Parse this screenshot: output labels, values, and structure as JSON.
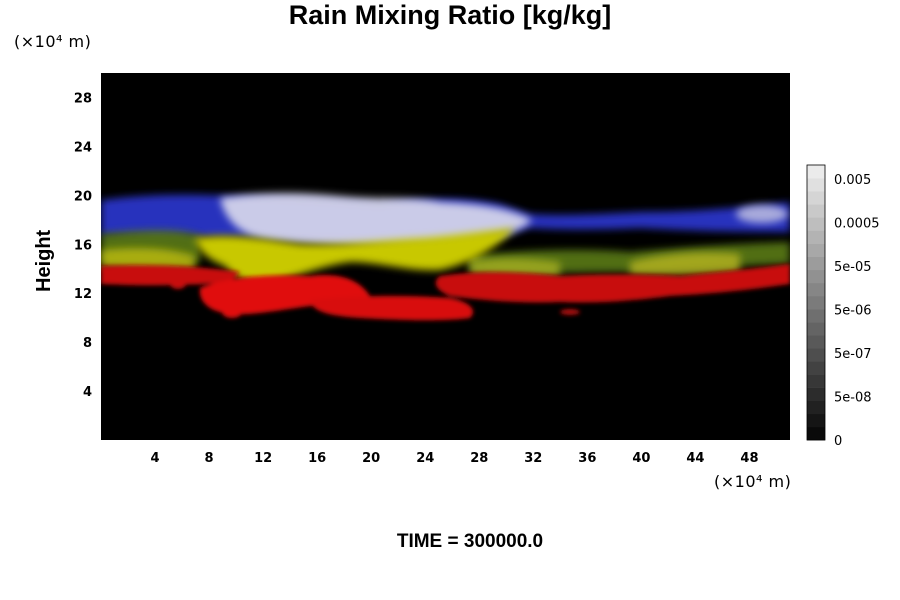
{
  "chart_data": {
    "type": "heatmap",
    "title": "Rain Mixing Ratio [kg/kg]",
    "ylabel": "Height",
    "xlabel": "",
    "x_unit": "(×10⁴ m)",
    "y_unit": "(×10⁴ m)",
    "x_ticks": [
      4,
      8,
      12,
      16,
      20,
      24,
      28,
      32,
      36,
      40,
      44,
      48
    ],
    "y_ticks": [
      4,
      8,
      12,
      16,
      20,
      24,
      28
    ],
    "xlim": [
      0,
      51
    ],
    "ylim": [
      0,
      30
    ],
    "colorbar": {
      "labels": [
        "0.005",
        "0.0005",
        "5e-05",
        "5e-06",
        "5e-07",
        "5e-08",
        "0"
      ],
      "levels": 21,
      "range": [
        "0",
        "0.005"
      ]
    },
    "background": "#000000",
    "colors": {
      "blue_layer": "#2a34c8",
      "white_layer": "#d8d8ec",
      "yellow_layer": "#c8c800",
      "red_layer": "#e01010",
      "green_layer": "#5a7a18"
    },
    "footer": "TIME = 300000.0"
  }
}
